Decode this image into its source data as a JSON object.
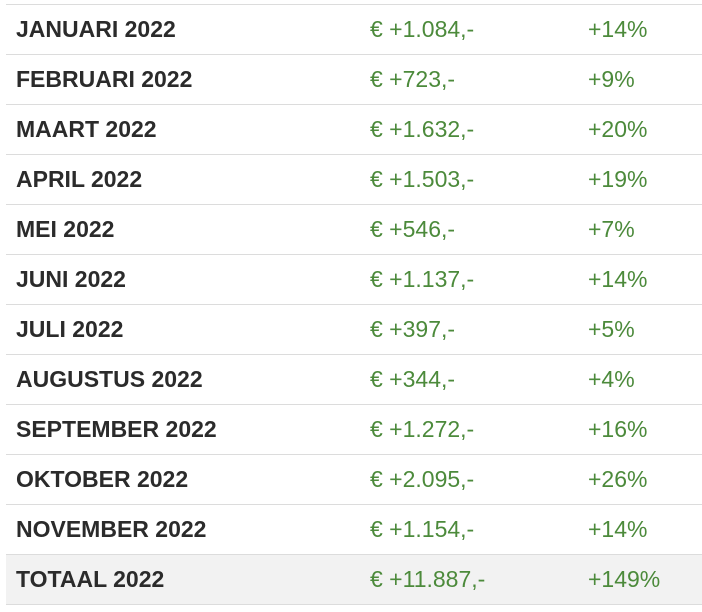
{
  "rows": [
    {
      "month": "JANUARI 2022",
      "amount": "€ +1.084,-",
      "percent": "+14%"
    },
    {
      "month": "FEBRUARI 2022",
      "amount": "€ +723,-",
      "percent": "+9%"
    },
    {
      "month": "MAART 2022",
      "amount": "€ +1.632,-",
      "percent": "+20%"
    },
    {
      "month": "APRIL 2022",
      "amount": "€ +1.503,-",
      "percent": "+19%"
    },
    {
      "month": "MEI 2022",
      "amount": "€ +546,-",
      "percent": "+7%"
    },
    {
      "month": "JUNI 2022",
      "amount": "€ +1.137,-",
      "percent": "+14%"
    },
    {
      "month": "JULI 2022",
      "amount": "€ +397,-",
      "percent": "+5%"
    },
    {
      "month": "AUGUSTUS 2022",
      "amount": "€ +344,-",
      "percent": "+4%"
    },
    {
      "month": "SEPTEMBER 2022",
      "amount": "€ +1.272,-",
      "percent": "+16%"
    },
    {
      "month": "OKTOBER 2022",
      "amount": "€ +2.095,-",
      "percent": "+26%"
    },
    {
      "month": "NOVEMBER 2022",
      "amount": "€ +1.154,-",
      "percent": "+14%"
    }
  ],
  "total": {
    "month": "TOTAAL 2022",
    "amount": "€ +11.887,-",
    "percent": "+149%"
  },
  "colors": {
    "value_green": "#4c8a3b",
    "label_dark": "#2b2b2b",
    "total_background": "#f2f2f2",
    "row_border": "#dcdcdc"
  }
}
